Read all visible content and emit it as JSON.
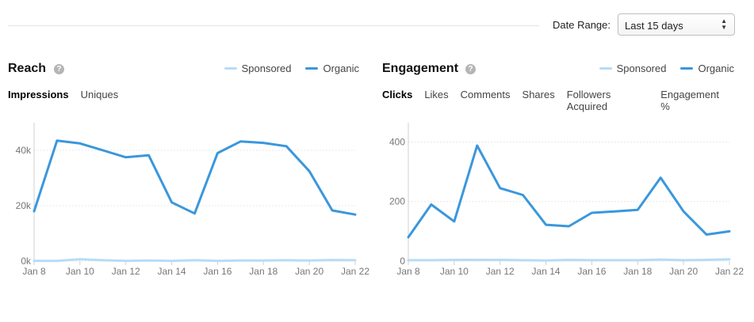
{
  "header": {
    "date_range_label": "Date Range:",
    "date_range_value": "Last 15 days"
  },
  "reach": {
    "title": "Reach",
    "help_icon": "?",
    "legend": {
      "sponsored": "Sponsored",
      "organic": "Organic"
    },
    "tabs": [
      "Impressions",
      "Uniques"
    ],
    "active_tab": 0
  },
  "engagement": {
    "title": "Engagement",
    "help_icon": "?",
    "legend": {
      "sponsored": "Sponsored",
      "organic": "Organic"
    },
    "tabs": [
      "Clicks",
      "Likes",
      "Comments",
      "Shares",
      "Followers Acquired",
      "Engagement %"
    ],
    "active_tab": 0
  },
  "colors": {
    "organic": "#3a97dc",
    "sponsored": "#b6dcf7",
    "grid": "#e8e8e8",
    "axis": "#d0d0d0"
  },
  "chart_data": [
    {
      "type": "line",
      "title": "Reach",
      "x": [
        "Jan 8",
        "Jan 9",
        "Jan 10",
        "Jan 11",
        "Jan 12",
        "Jan 13",
        "Jan 14",
        "Jan 15",
        "Jan 16",
        "Jan 17",
        "Jan 18",
        "Jan 19",
        "Jan 20",
        "Jan 21",
        "Jan 22"
      ],
      "x_tick_labels": [
        "Jan 8",
        "Jan 10",
        "Jan 12",
        "Jan 14",
        "Jan 16",
        "Jan 18",
        "Jan 20",
        "Jan 22"
      ],
      "ylim": [
        0,
        50000
      ],
      "y_ticks": [
        0,
        20000,
        40000
      ],
      "y_tick_labels": [
        "0k",
        "20k",
        "40k"
      ],
      "grid": true,
      "legend_position": "top-right",
      "series": [
        {
          "name": "Sponsored",
          "values": [
            100,
            100,
            700,
            300,
            100,
            200,
            100,
            300,
            100,
            200,
            200,
            300,
            200,
            400,
            300
          ]
        },
        {
          "name": "Organic",
          "values": [
            18000,
            43500,
            42500,
            40000,
            37500,
            38200,
            21200,
            17200,
            39000,
            43200,
            42700,
            41500,
            32500,
            18300,
            16800
          ]
        }
      ]
    },
    {
      "type": "line",
      "title": "Engagement",
      "x": [
        "Jan 8",
        "Jan 9",
        "Jan 10",
        "Jan 11",
        "Jan 12",
        "Jan 13",
        "Jan 14",
        "Jan 15",
        "Jan 16",
        "Jan 17",
        "Jan 18",
        "Jan 19",
        "Jan 20",
        "Jan 21",
        "Jan 22"
      ],
      "x_tick_labels": [
        "Jan 8",
        "Jan 10",
        "Jan 12",
        "Jan 14",
        "Jan 16",
        "Jan 18",
        "Jan 20",
        "Jan 22"
      ],
      "ylim": [
        0,
        465
      ],
      "y_ticks": [
        0,
        200,
        400
      ],
      "y_tick_labels": [
        "0",
        "200",
        "400"
      ],
      "grid": true,
      "legend_position": "top-right",
      "series": [
        {
          "name": "Sponsored",
          "values": [
            3,
            3,
            4,
            4,
            4,
            3,
            2,
            4,
            3,
            3,
            3,
            5,
            3,
            4,
            6
          ]
        },
        {
          "name": "Organic",
          "values": [
            80,
            190,
            133,
            388,
            245,
            222,
            122,
            117,
            162,
            167,
            172,
            280,
            167,
            89,
            100
          ]
        }
      ]
    }
  ]
}
